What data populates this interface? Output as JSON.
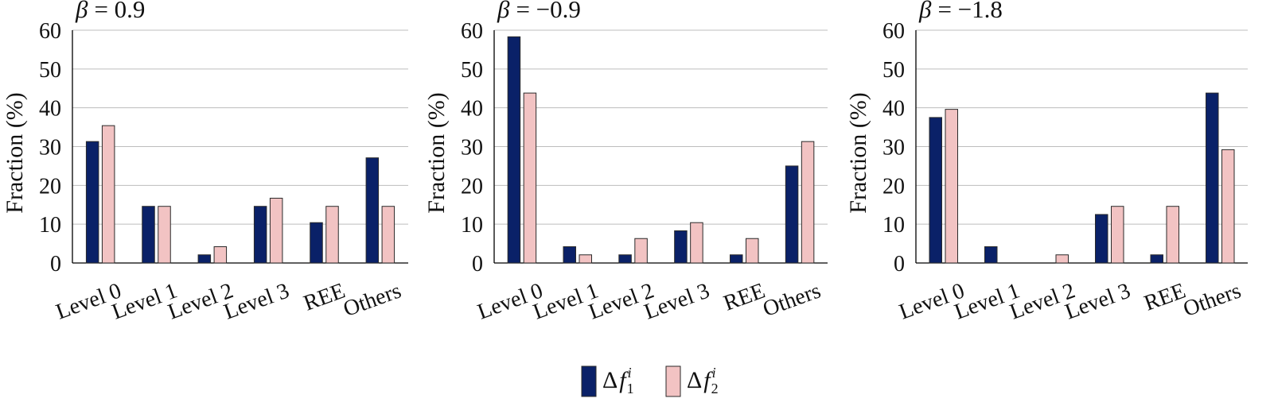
{
  "colors": {
    "series1": "#0a2168",
    "series2": "#f2c3c3",
    "grid": "#bdbdbd",
    "axis": "#000000"
  },
  "legend": {
    "placement": "bottom-center",
    "items": [
      {
        "symbol": "Δ",
        "var": "f",
        "sup": "i",
        "sub": "1"
      },
      {
        "symbol": "Δ",
        "var": "f",
        "sup": "i",
        "sub": "2"
      }
    ]
  },
  "chart_data": [
    {
      "type": "bar",
      "title_symbol": "β",
      "title_value": "= 0.9",
      "ylabel": "Fraction (%)",
      "categories": [
        "Level 0",
        "Level 1",
        "Level 2",
        "Level 3",
        "REE",
        "Others"
      ],
      "yticks": [
        "0",
        "10",
        "20",
        "30",
        "40",
        "50",
        "60"
      ],
      "ylim": [
        0,
        60
      ],
      "grid": true,
      "series": [
        {
          "values": [
            31.3,
            14.6,
            2.1,
            14.6,
            10.4,
            27.1
          ]
        },
        {
          "values": [
            35.4,
            14.6,
            4.2,
            16.7,
            14.6,
            14.6
          ]
        }
      ]
    },
    {
      "type": "bar",
      "title_symbol": "β",
      "title_value": "= −0.9",
      "ylabel": "Fraction (%)",
      "categories": [
        "Level 0",
        "Level 1",
        "Level 2",
        "Level 3",
        "REE",
        "Others"
      ],
      "yticks": [
        "0",
        "10",
        "20",
        "30",
        "40",
        "50",
        "60"
      ],
      "ylim": [
        0,
        60
      ],
      "grid": true,
      "series": [
        {
          "values": [
            58.3,
            4.2,
            2.1,
            8.3,
            2.1,
            25.0
          ]
        },
        {
          "values": [
            43.8,
            2.1,
            6.3,
            10.4,
            6.3,
            31.3
          ]
        }
      ]
    },
    {
      "type": "bar",
      "title_symbol": "β",
      "title_value": "= −1.8",
      "ylabel": "Fraction (%)",
      "categories": [
        "Level 0",
        "Level 1",
        "Level 2",
        "Level 3",
        "REE",
        "Others"
      ],
      "yticks": [
        "0",
        "10",
        "20",
        "30",
        "40",
        "50",
        "60"
      ],
      "ylim": [
        0,
        60
      ],
      "grid": true,
      "series": [
        {
          "values": [
            37.5,
            4.2,
            0,
            12.5,
            2.1,
            43.8
          ]
        },
        {
          "values": [
            39.6,
            0,
            2.1,
            14.6,
            14.6,
            29.2
          ]
        }
      ]
    }
  ]
}
